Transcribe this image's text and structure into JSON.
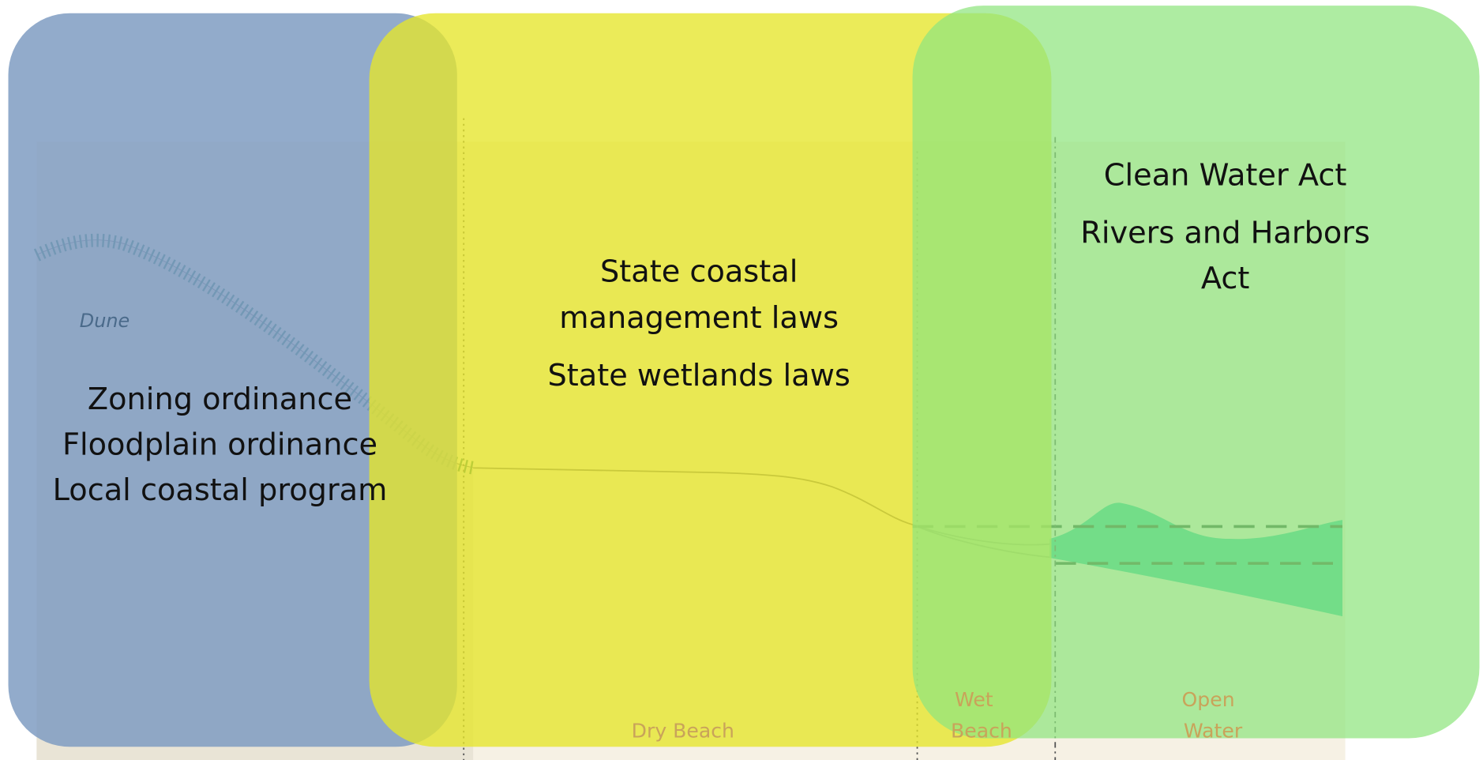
{
  "dune_label": "Dune",
  "local": {
    "laws": [
      "Zoning ordinance",
      "Floodplain ordinance",
      "Local coastal program"
    ]
  },
  "state": {
    "laws": [
      [
        "State coastal",
        "management laws"
      ],
      [
        "State wetlands laws"
      ]
    ]
  },
  "federal": {
    "laws": [
      [
        "Clean Water Act"
      ],
      [
        "Rivers and Harbors",
        "Act"
      ]
    ]
  },
  "beach_zones": [
    [
      "Dry Beach"
    ],
    [
      "Wet",
      "Beach"
    ],
    [
      "Open",
      "Water"
    ]
  ]
}
